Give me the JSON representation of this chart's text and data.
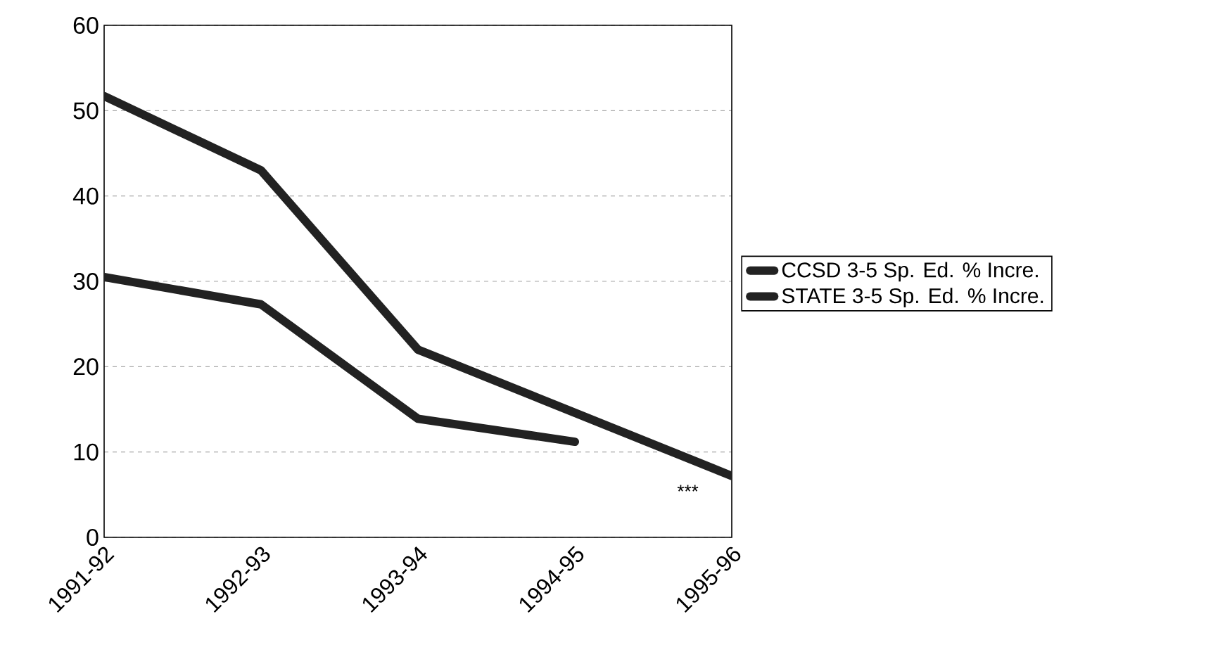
{
  "chart_data": {
    "type": "line",
    "categories": [
      "1991-92",
      "1992-93",
      "1993-94",
      "1994-95",
      "1995-96"
    ],
    "series": [
      {
        "name": "CCSD 3-5 Sp. Ed. % Incre.",
        "color": "#222222",
        "values": [
          51.7,
          43,
          22,
          14.6,
          7.2
        ]
      },
      {
        "name": "STATE 3-5 Sp. Ed. % Incre.",
        "color": "#222222",
        "values": [
          30.5,
          27.3,
          13.9,
          11.2,
          null
        ]
      }
    ],
    "ylim": [
      0,
      60
    ],
    "yticks": [
      0,
      10,
      20,
      30,
      40,
      50,
      60
    ],
    "grid": "y",
    "legend": "right",
    "marker": "none",
    "line_style": "solid",
    "annotations": [
      "***"
    ]
  }
}
